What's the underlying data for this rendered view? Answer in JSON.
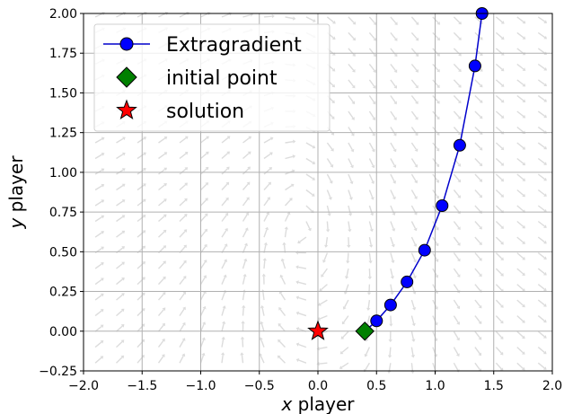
{
  "chart_data": {
    "type": "line",
    "xlabel_var": "x",
    "xlabel_word": "player",
    "ylabel_var": "y",
    "ylabel_word": "player",
    "xlim": [
      -2.0,
      2.0
    ],
    "ylim": [
      -0.25,
      2.0
    ],
    "xticks": [
      -2.0,
      -1.5,
      -1.0,
      -0.5,
      0.0,
      0.5,
      1.0,
      1.5,
      2.0
    ],
    "xtick_labels": [
      "−2.0",
      "−1.5",
      "−1.0",
      "−0.5",
      "0.0",
      "0.5",
      "1.0",
      "1.5",
      "2.0"
    ],
    "yticks": [
      -0.25,
      0.0,
      0.25,
      0.5,
      0.75,
      1.0,
      1.25,
      1.5,
      1.75,
      2.0
    ],
    "ytick_labels": [
      "−0.25",
      "0.00",
      "0.25",
      "0.50",
      "0.75",
      "1.00",
      "1.25",
      "1.50",
      "1.75",
      "2.00"
    ],
    "grid": true,
    "legend_position": "top-left",
    "background": "streamplot vector field (light gray arrows)",
    "series": [
      {
        "name": "Extragradient",
        "color": "#0000cc",
        "marker": "circle",
        "x": [
          0.4,
          0.5,
          0.62,
          0.76,
          0.91,
          1.06,
          1.21,
          1.34,
          1.4
        ],
        "y": [
          0.0,
          0.065,
          0.165,
          0.31,
          0.51,
          0.79,
          1.17,
          1.67,
          2.0
        ],
        "marker_count": 8
      }
    ],
    "points": [
      {
        "name": "initial point",
        "x": 0.4,
        "y": 0.0,
        "marker": "diamond",
        "color": "#008000"
      },
      {
        "name": "solution",
        "x": 0.0,
        "y": 0.0,
        "marker": "star",
        "color": "#ff0000"
      }
    ]
  }
}
